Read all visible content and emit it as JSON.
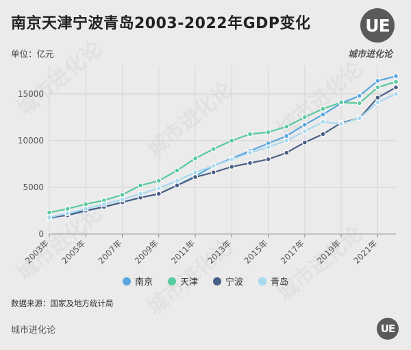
{
  "header": {
    "title": "南京天津宁波青岛2003-2022年GDP变化",
    "unit_label": "单位：亿元"
  },
  "brand": {
    "logo_text": "UE",
    "name": "城市进化论"
  },
  "watermark": {
    "text": "城市进化论"
  },
  "footer": {
    "source": "数据来源：国家及地方统计局",
    "name": "城市进化论",
    "logo_text": "UE"
  },
  "chart_data": {
    "type": "line",
    "title": "南京天津宁波青岛2003-2022年GDP变化",
    "ylabel": "单位：亿元",
    "xlabel": "",
    "ylim": [
      0,
      18000
    ],
    "yticks": [
      0,
      5000,
      10000,
      15000
    ],
    "grid": true,
    "legend_position": "bottom",
    "x": [
      2003,
      2004,
      2005,
      2006,
      2007,
      2008,
      2009,
      2010,
      2011,
      2012,
      2013,
      2014,
      2015,
      2016,
      2017,
      2018,
      2019,
      2020,
      2021,
      2022
    ],
    "xtick_labels": [
      "2003年",
      "2005年",
      "2007年",
      "2009年",
      "2011年",
      "2013年",
      "2015年",
      "2017年",
      "2019年",
      "2021年"
    ],
    "xtick_years": [
      2003,
      2005,
      2007,
      2009,
      2011,
      2013,
      2015,
      2017,
      2019,
      2021
    ],
    "series": [
      {
        "name": "南京",
        "color": "#5aa6dc",
        "values": [
          1650,
          2100,
          2500,
          2900,
          3400,
          3900,
          4300,
          5200,
          6200,
          7300,
          8100,
          8900,
          9700,
          10500,
          11700,
          12800,
          14000,
          14800,
          16400,
          16900
        ]
      },
      {
        "name": "天津",
        "color": "#59c9a0",
        "values": [
          2300,
          2700,
          3200,
          3600,
          4200,
          5200,
          5700,
          6800,
          8100,
          9100,
          10000,
          10700,
          10900,
          11500,
          12500,
          13400,
          14100,
          14000,
          15700,
          16300
        ]
      },
      {
        "name": "宁波",
        "color": "#4a5f86",
        "values": [
          1800,
          2000,
          2500,
          2900,
          3400,
          3900,
          4300,
          5200,
          6100,
          6600,
          7200,
          7600,
          8000,
          8700,
          9800,
          10700,
          11900,
          12400,
          14600,
          15700
        ]
      },
      {
        "name": "青岛",
        "color": "#a7d9ef",
        "values": [
          1800,
          2200,
          2700,
          3200,
          3700,
          4300,
          4900,
          5700,
          6600,
          7300,
          8000,
          8700,
          9300,
          10000,
          11000,
          12000,
          11800,
          12400,
          14100,
          15000
        ]
      }
    ]
  }
}
